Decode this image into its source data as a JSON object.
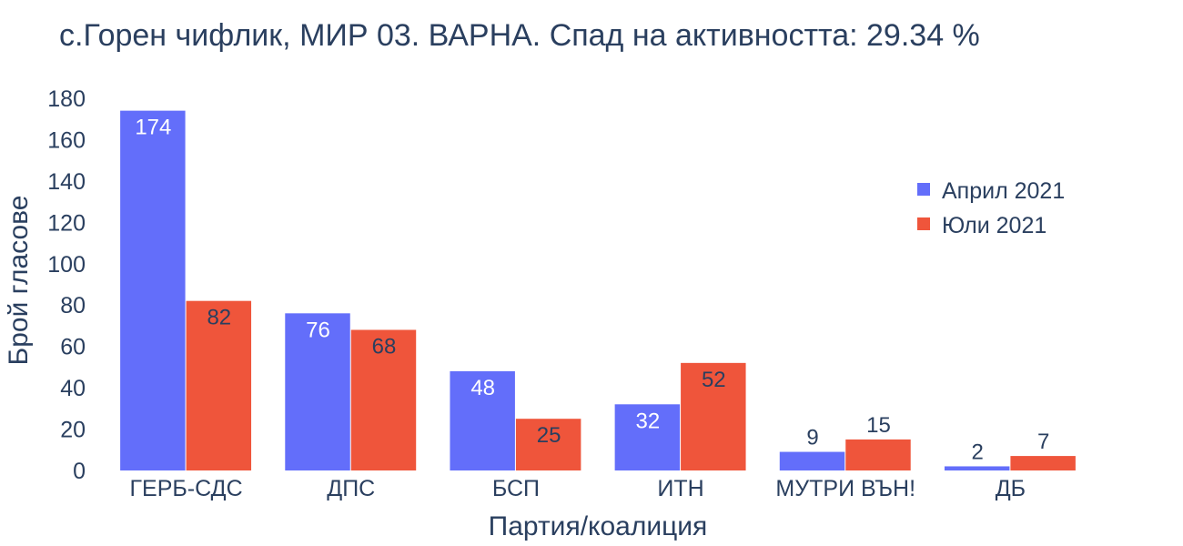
{
  "chart_data": {
    "type": "bar",
    "title": "с.Горен чифлик, МИР 03. ВАРНА. Спад на активността: 29.34 %",
    "xlabel": "Партия/коалиция",
    "ylabel": "Брой гласове",
    "categories": [
      "ГЕРБ-СДС",
      "ДПС",
      "БСП",
      "ИТН",
      "МУТРИ ВЪН!",
      "ДБ"
    ],
    "series": [
      {
        "name": "Април 2021",
        "color": "#636efa",
        "values": [
          174,
          76,
          48,
          32,
          9,
          2
        ]
      },
      {
        "name": "Юли 2021",
        "color": "#ef553b",
        "values": [
          82,
          68,
          25,
          52,
          15,
          7
        ]
      }
    ],
    "ylim": [
      0,
      180
    ],
    "yticks": [
      0,
      20,
      40,
      60,
      80,
      100,
      120,
      140,
      160,
      180
    ],
    "grid": false,
    "legend_position": "top-right"
  }
}
